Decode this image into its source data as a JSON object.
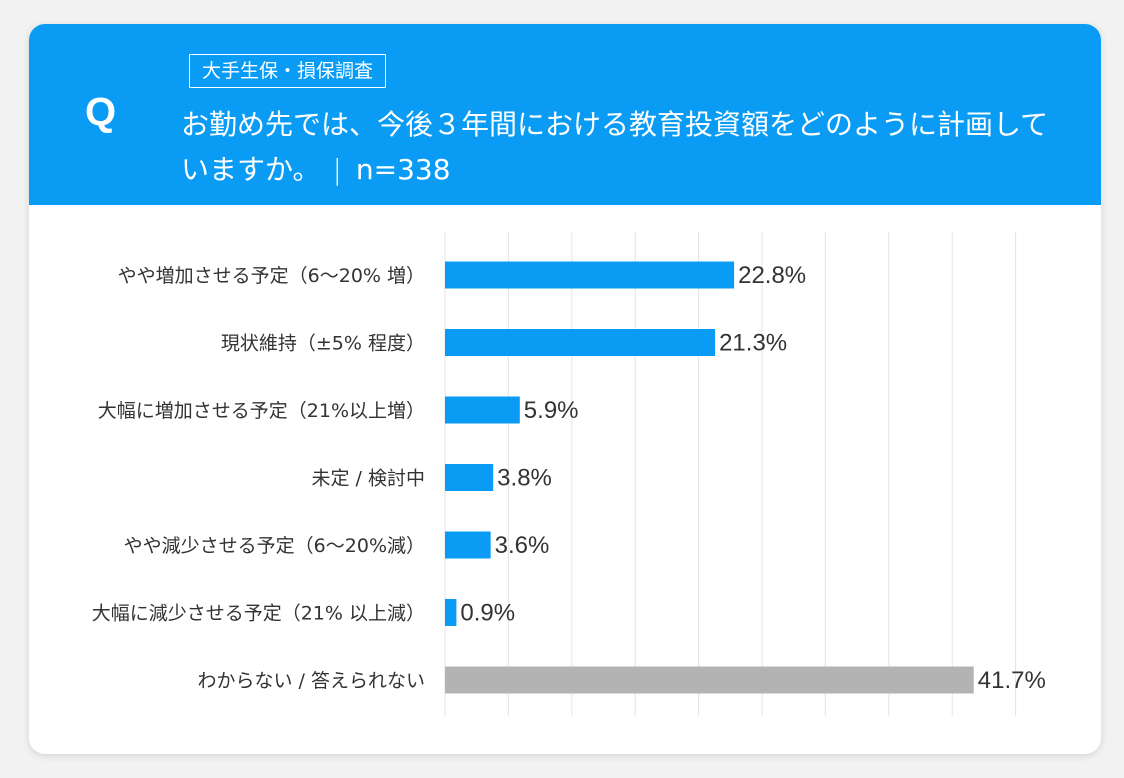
{
  "header": {
    "q_mark": "Q",
    "tag": "大手生保・損保調査",
    "question": "お勤め先では、今後３年間における教育投資額をどのように計画していますか。",
    "separator": "|",
    "sample_size": "n=338"
  },
  "colors": {
    "header_bg": "#0a9cf5",
    "bar_primary": "#0a9cf5",
    "bar_neutral": "#b3b3b3"
  },
  "chart_data": {
    "type": "bar",
    "orientation": "horizontal",
    "categories": [
      "やや増加させる予定（6〜20% 増）",
      "現状維持（±5% 程度）",
      "大幅に増加させる予定（21%以上増）",
      "未定 / 検討中",
      "やや減少させる予定（6〜20%減）",
      "大幅に減少させる予定（21% 以上減）",
      "わからない / 答えられない"
    ],
    "values": [
      22.8,
      21.3,
      5.9,
      3.8,
      3.6,
      0.9,
      41.7
    ],
    "value_labels": [
      "22.8%",
      "21.3%",
      "5.9%",
      "3.8%",
      "3.6%",
      "0.9%",
      "41.7%"
    ],
    "bar_colors": [
      "#0a9cf5",
      "#0a9cf5",
      "#0a9cf5",
      "#0a9cf5",
      "#0a9cf5",
      "#0a9cf5",
      "#b3b3b3"
    ],
    "xlim": [
      0,
      45
    ],
    "grid": true,
    "gridline_step": 5
  }
}
